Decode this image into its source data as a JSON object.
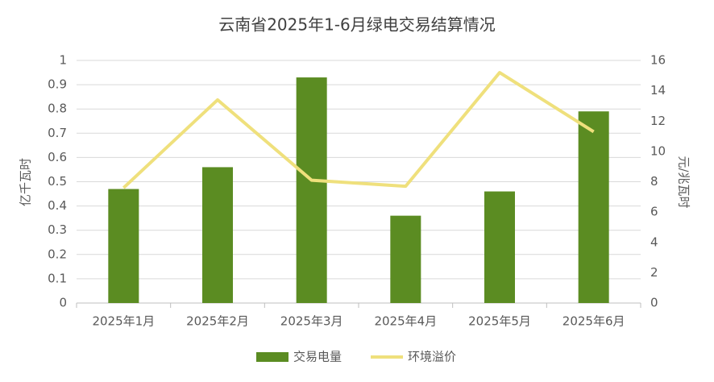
{
  "chart_data": {
    "type": "bar",
    "title": "云南省2025年1-6月绿电交易结算情况",
    "categories": [
      "2025年1月",
      "2025年2月",
      "2025年3月",
      "2025年4月",
      "2025年5月",
      "2025年6月"
    ],
    "series": [
      {
        "name": "交易电量",
        "type": "bar",
        "color": "#5b8c22",
        "values": [
          0.47,
          0.56,
          0.93,
          0.36,
          0.46,
          0.79
        ]
      },
      {
        "name": "环境溢价",
        "type": "line",
        "axis": "y2",
        "color": "#efe07c",
        "values": [
          7.6,
          13.4,
          8.1,
          7.7,
          15.2,
          11.3
        ]
      }
    ],
    "ylabel": "亿千瓦时",
    "y2label": "元/兆瓦时",
    "ylim": [
      0,
      1
    ],
    "yticks": [
      0,
      0.1,
      0.2,
      0.3,
      0.4,
      0.5,
      0.6,
      0.7,
      0.8,
      0.9,
      1
    ],
    "y2lim": [
      0,
      16
    ],
    "y2ticks": [
      0,
      2,
      4,
      6,
      8,
      10,
      12,
      14,
      16
    ],
    "grid": true,
    "legend": "bottom"
  }
}
